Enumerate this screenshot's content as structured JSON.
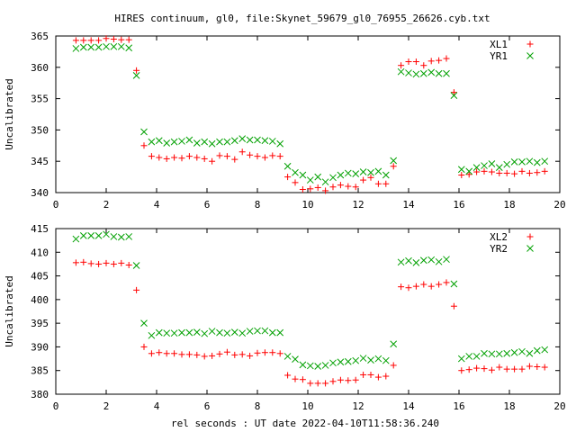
{
  "title": "HIRES continuum, gl0, file:Skynet_59679_gl0_76955_26626.cyb.txt",
  "xlabel": "rel seconds : UT date 2022-04-10T11:58:36.240",
  "colors": {
    "red": "#ff0000",
    "green": "#00a000"
  },
  "chart_data": [
    {
      "type": "scatter",
      "ylabel": "Uncalibrated",
      "xlim": [
        0,
        20
      ],
      "ylim": [
        340,
        365
      ],
      "xticks": [
        0,
        2,
        4,
        6,
        8,
        10,
        12,
        14,
        16,
        18,
        20
      ],
      "yticks": [
        340,
        345,
        350,
        355,
        360,
        365
      ],
      "legend_position": "top-right",
      "series": [
        {
          "name": "XL1",
          "marker": "plus",
          "color": "#ff0000",
          "x": [
            0.8,
            1.1,
            1.4,
            1.7,
            2.0,
            2.3,
            2.6,
            2.9,
            3.2,
            3.5,
            3.8,
            4.1,
            4.4,
            4.7,
            5.0,
            5.3,
            5.6,
            5.9,
            6.2,
            6.5,
            6.8,
            7.1,
            7.4,
            7.7,
            8.0,
            8.3,
            8.6,
            8.9,
            9.2,
            9.5,
            9.8,
            10.1,
            10.4,
            10.7,
            11.0,
            11.3,
            11.6,
            11.9,
            12.2,
            12.5,
            12.8,
            13.1,
            13.4,
            13.7,
            14.0,
            14.3,
            14.6,
            14.9,
            15.2,
            15.5,
            15.8,
            16.1,
            16.4,
            16.7,
            17.0,
            17.3,
            17.6,
            17.9,
            18.2,
            18.5,
            18.8,
            19.1,
            19.4
          ],
          "y": [
            364.3,
            364.3,
            364.3,
            364.3,
            364.6,
            364.5,
            364.4,
            364.4,
            359.5,
            347.5,
            345.8,
            345.6,
            345.4,
            345.6,
            345.5,
            345.8,
            345.6,
            345.4,
            345.0,
            345.9,
            345.8,
            345.3,
            346.5,
            346.0,
            345.8,
            345.6,
            345.9,
            345.8,
            342.5,
            341.6,
            340.5,
            340.6,
            340.8,
            340.3,
            340.9,
            341.2,
            341.0,
            340.9,
            342.0,
            342.4,
            341.4,
            341.4,
            344.2,
            360.3,
            360.9,
            360.9,
            360.3,
            361.0,
            361.1,
            361.4,
            356.0,
            342.8,
            342.9,
            343.3,
            343.4,
            343.3,
            343.1,
            343.1,
            343.0,
            343.4,
            343.1,
            343.2,
            343.4
          ]
        },
        {
          "name": "YR1",
          "marker": "cross",
          "color": "#00a000",
          "x": [
            0.8,
            1.1,
            1.4,
            1.7,
            2.0,
            2.3,
            2.6,
            2.9,
            3.2,
            3.5,
            3.8,
            4.1,
            4.4,
            4.7,
            5.0,
            5.3,
            5.6,
            5.9,
            6.2,
            6.5,
            6.8,
            7.1,
            7.4,
            7.7,
            8.0,
            8.3,
            8.6,
            8.9,
            9.2,
            9.5,
            9.8,
            10.1,
            10.4,
            10.7,
            11.0,
            11.3,
            11.6,
            11.9,
            12.2,
            12.5,
            12.8,
            13.1,
            13.4,
            13.7,
            14.0,
            14.3,
            14.6,
            14.9,
            15.2,
            15.5,
            15.8,
            16.1,
            16.4,
            16.7,
            17.0,
            17.3,
            17.6,
            17.9,
            18.2,
            18.5,
            18.8,
            19.1,
            19.4
          ],
          "y": [
            363.0,
            363.2,
            363.2,
            363.2,
            363.3,
            363.3,
            363.3,
            363.1,
            358.7,
            349.7,
            348.1,
            348.3,
            347.9,
            348.1,
            348.2,
            348.4,
            347.9,
            348.1,
            347.8,
            348.1,
            348.1,
            348.3,
            348.6,
            348.4,
            348.4,
            348.3,
            348.2,
            347.8,
            344.2,
            343.2,
            342.8,
            342.0,
            342.5,
            341.7,
            342.4,
            342.8,
            343.1,
            343.0,
            343.3,
            343.2,
            343.4,
            342.8,
            345.1,
            359.3,
            359.1,
            358.9,
            359.0,
            359.2,
            359.0,
            359.0,
            355.5,
            343.7,
            343.4,
            344.0,
            344.3,
            344.6,
            344.0,
            344.5,
            344.9,
            344.9,
            345.0,
            344.8,
            345.0
          ]
        }
      ]
    },
    {
      "type": "scatter",
      "ylabel": "Uncalibrated",
      "xlim": [
        0,
        20
      ],
      "ylim": [
        380,
        415
      ],
      "xticks": [
        0,
        2,
        4,
        6,
        8,
        10,
        12,
        14,
        16,
        18,
        20
      ],
      "yticks": [
        380,
        385,
        390,
        395,
        400,
        405,
        410,
        415
      ],
      "legend_position": "top-right",
      "series": [
        {
          "name": "XL2",
          "marker": "plus",
          "color": "#ff0000",
          "x": [
            0.8,
            1.1,
            1.4,
            1.7,
            2.0,
            2.3,
            2.6,
            2.9,
            3.2,
            3.5,
            3.8,
            4.1,
            4.4,
            4.7,
            5.0,
            5.3,
            5.6,
            5.9,
            6.2,
            6.5,
            6.8,
            7.1,
            7.4,
            7.7,
            8.0,
            8.3,
            8.6,
            8.9,
            9.2,
            9.5,
            9.8,
            10.1,
            10.4,
            10.7,
            11.0,
            11.3,
            11.6,
            11.9,
            12.2,
            12.5,
            12.8,
            13.1,
            13.4,
            13.7,
            14.0,
            14.3,
            14.6,
            14.9,
            15.2,
            15.5,
            15.8,
            16.1,
            16.4,
            16.7,
            17.0,
            17.3,
            17.6,
            17.9,
            18.2,
            18.5,
            18.8,
            19.1,
            19.4
          ],
          "y": [
            407.8,
            407.9,
            407.6,
            407.5,
            407.7,
            407.5,
            407.7,
            407.3,
            402.0,
            390.0,
            388.6,
            388.8,
            388.6,
            388.6,
            388.4,
            388.4,
            388.3,
            388.0,
            388.1,
            388.5,
            388.9,
            388.3,
            388.4,
            388.1,
            388.7,
            388.8,
            388.8,
            388.6,
            384.0,
            383.2,
            383.1,
            382.3,
            382.3,
            382.3,
            382.7,
            383.0,
            382.9,
            383.0,
            384.1,
            384.1,
            383.6,
            383.8,
            386.1,
            402.7,
            402.5,
            402.8,
            403.2,
            402.8,
            403.2,
            403.6,
            398.6,
            385.0,
            385.2,
            385.5,
            385.4,
            385.1,
            385.7,
            385.3,
            385.3,
            385.3,
            385.9,
            385.8,
            385.7
          ]
        },
        {
          "name": "YR2",
          "marker": "cross",
          "color": "#00a000",
          "x": [
            0.8,
            1.1,
            1.4,
            1.7,
            2.0,
            2.3,
            2.6,
            2.9,
            3.2,
            3.5,
            3.8,
            4.1,
            4.4,
            4.7,
            5.0,
            5.3,
            5.6,
            5.9,
            6.2,
            6.5,
            6.8,
            7.1,
            7.4,
            7.7,
            8.0,
            8.3,
            8.6,
            8.9,
            9.2,
            9.5,
            9.8,
            10.1,
            10.4,
            10.7,
            11.0,
            11.3,
            11.6,
            11.9,
            12.2,
            12.5,
            12.8,
            13.1,
            13.4,
            13.7,
            14.0,
            14.3,
            14.6,
            14.9,
            15.2,
            15.5,
            15.8,
            16.1,
            16.4,
            16.7,
            17.0,
            17.3,
            17.6,
            17.9,
            18.2,
            18.5,
            18.8,
            19.1,
            19.4
          ],
          "y": [
            412.8,
            413.5,
            413.5,
            413.5,
            413.8,
            413.3,
            413.2,
            413.3,
            407.2,
            395.0,
            392.4,
            393.0,
            392.9,
            392.9,
            393.0,
            393.0,
            393.1,
            392.8,
            393.3,
            393.0,
            392.9,
            393.1,
            392.9,
            393.3,
            393.4,
            393.4,
            393.0,
            393.0,
            388.0,
            387.4,
            386.2,
            386.0,
            385.9,
            386.1,
            386.6,
            386.8,
            386.9,
            387.1,
            387.6,
            387.2,
            387.5,
            387.1,
            390.6,
            407.9,
            408.2,
            407.8,
            408.3,
            408.4,
            408.0,
            408.5,
            403.3,
            387.5,
            388.0,
            388.0,
            388.6,
            388.5,
            388.5,
            388.6,
            388.8,
            389.0,
            388.6,
            389.2,
            389.4
          ]
        }
      ]
    }
  ]
}
